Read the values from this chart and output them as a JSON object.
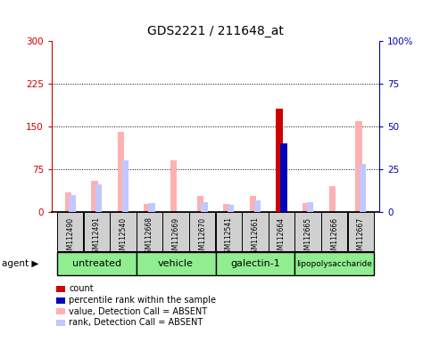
{
  "title": "GDS2221 / 211648_at",
  "samples": [
    "GSM112490",
    "GSM112491",
    "GSM112540",
    "GSM112668",
    "GSM112669",
    "GSM112670",
    "GSM112541",
    "GSM112661",
    "GSM112664",
    "GSM112665",
    "GSM112666",
    "GSM112667"
  ],
  "group_configs": [
    {
      "label": "untreated",
      "start": 0,
      "end": 2
    },
    {
      "label": "vehicle",
      "start": 3,
      "end": 5
    },
    {
      "label": "galectin-1",
      "start": 6,
      "end": 8
    },
    {
      "label": "lipopolysaccharide",
      "start": 9,
      "end": 11
    }
  ],
  "value_absent": [
    35,
    55,
    140,
    14,
    90,
    28,
    14,
    28,
    0,
    16,
    45,
    160
  ],
  "rank_absent_pct": [
    10,
    16,
    30,
    5,
    0,
    6,
    4,
    7,
    0,
    6,
    0,
    28
  ],
  "count_present": [
    0,
    0,
    0,
    0,
    0,
    0,
    0,
    0,
    182,
    0,
    0,
    0
  ],
  "percentile_present": [
    0,
    0,
    0,
    0,
    0,
    0,
    0,
    0,
    40,
    0,
    0,
    0
  ],
  "ylim_left": [
    0,
    300
  ],
  "ylim_right": [
    0,
    100
  ],
  "yticks_left": [
    0,
    75,
    150,
    225,
    300
  ],
  "yticks_right": [
    0,
    25,
    50,
    75,
    100
  ],
  "ytick_labels_left": [
    "0",
    "75",
    "150",
    "225",
    "300"
  ],
  "ytick_labels_right": [
    "0",
    "25",
    "50",
    "75",
    "100%"
  ],
  "color_count": "#cc0000",
  "color_percentile": "#0000bb",
  "color_value_absent": "#ffb0b0",
  "color_rank_absent": "#c0c8ff",
  "color_axis_left": "#cc0000",
  "color_axis_right": "#0000bb",
  "legend_items": [
    {
      "label": "count",
      "color": "#cc0000"
    },
    {
      "label": "percentile rank within the sample",
      "color": "#0000bb"
    },
    {
      "label": "value, Detection Call = ABSENT",
      "color": "#ffb0b0"
    },
    {
      "label": "rank, Detection Call = ABSENT",
      "color": "#c0c8ff"
    }
  ],
  "group_bar_color": "#90ee90",
  "agent_label": "agent",
  "figsize": [
    4.83,
    3.84
  ],
  "dpi": 100
}
